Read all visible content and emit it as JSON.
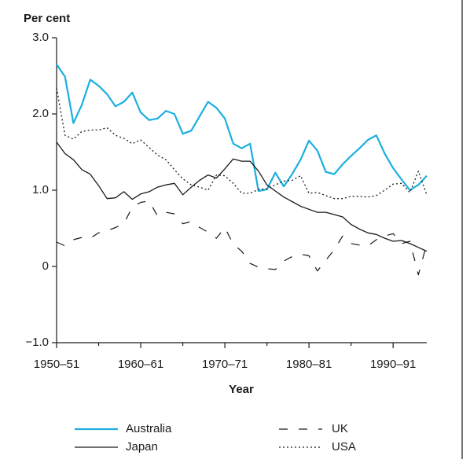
{
  "chart_data": {
    "type": "line",
    "title": "Per cent",
    "x_label": "Year",
    "categories": [
      "1950–51",
      null,
      null,
      null,
      null,
      null,
      null,
      null,
      null,
      null,
      "1960–61",
      null,
      null,
      null,
      null,
      null,
      null,
      null,
      null,
      null,
      "1970–71",
      null,
      null,
      null,
      null,
      null,
      null,
      null,
      null,
      null,
      "1980–81",
      null,
      null,
      null,
      null,
      null,
      null,
      null,
      null,
      null,
      "1990–91",
      null,
      null,
      null,
      null
    ],
    "series": [
      {
        "name": "Australia",
        "color": "#1aafe0",
        "dash": "solid",
        "values": [
          2.65,
          2.49,
          1.88,
          2.12,
          2.45,
          2.37,
          2.26,
          2.1,
          2.16,
          2.28,
          2.02,
          1.92,
          1.94,
          2.04,
          2.0,
          1.74,
          1.78,
          1.97,
          2.16,
          2.08,
          1.94,
          1.61,
          1.55,
          1.61,
          0.99,
          1.01,
          1.23,
          1.05,
          1.21,
          1.4,
          1.65,
          1.52,
          1.24,
          1.21,
          1.34,
          1.45,
          1.55,
          1.66,
          1.72,
          1.48,
          1.29,
          1.14,
          1.0,
          1.07,
          1.19
        ]
      },
      {
        "name": "Japan",
        "color": "#1a1a1a",
        "dash": "solid",
        "values": [
          1.63,
          1.48,
          1.4,
          1.27,
          1.21,
          1.06,
          0.89,
          0.9,
          0.98,
          0.88,
          0.95,
          0.98,
          1.04,
          1.07,
          1.09,
          0.94,
          1.04,
          1.13,
          1.2,
          1.16,
          1.28,
          1.41,
          1.38,
          1.38,
          1.25,
          1.07,
          0.99,
          0.91,
          0.85,
          0.79,
          0.75,
          0.71,
          0.71,
          0.68,
          0.65,
          0.55,
          0.49,
          0.44,
          0.42,
          0.37,
          0.33,
          0.34,
          0.3,
          0.25,
          0.2
        ]
      },
      {
        "name": "UK",
        "color": "#1a1a1a",
        "dash": "dashed",
        "values": [
          0.32,
          0.27,
          0.35,
          0.38,
          0.37,
          0.44,
          0.47,
          0.51,
          0.56,
          0.78,
          0.84,
          0.86,
          0.66,
          0.71,
          0.69,
          0.56,
          0.59,
          0.51,
          0.45,
          0.37,
          0.51,
          0.29,
          0.2,
          0.04,
          -0.01,
          -0.03,
          -0.04,
          0.07,
          0.13,
          0.16,
          0.14,
          -0.06,
          0.08,
          0.22,
          0.4,
          0.3,
          0.28,
          0.27,
          0.35,
          0.4,
          0.43,
          0.3,
          0.33,
          -0.11,
          0.3
        ]
      },
      {
        "name": "USA",
        "color": "#1a1a1a",
        "dash": "dotted",
        "values": [
          2.34,
          1.72,
          1.67,
          1.77,
          1.79,
          1.79,
          1.82,
          1.72,
          1.68,
          1.61,
          1.66,
          1.56,
          1.46,
          1.4,
          1.27,
          1.15,
          1.07,
          1.04,
          1.0,
          1.2,
          1.19,
          1.09,
          0.96,
          0.96,
          1.01,
          1.02,
          1.07,
          1.12,
          1.13,
          1.19,
          0.96,
          0.97,
          0.93,
          0.89,
          0.89,
          0.92,
          0.92,
          0.91,
          0.93,
          1.0,
          1.08,
          1.09,
          0.97,
          1.25,
          0.94
        ]
      }
    ],
    "ylim": [
      -1.0,
      3.0
    ],
    "yticks": [
      {
        "value": 3.0,
        "label": "3.0"
      },
      {
        "value": 2.0,
        "label": "2.0"
      },
      {
        "value": 1.0,
        "label": "1.0"
      },
      0,
      {
        "value": -1.0,
        "label": "−1.0"
      }
    ],
    "grid": false,
    "legend": "bottom"
  }
}
